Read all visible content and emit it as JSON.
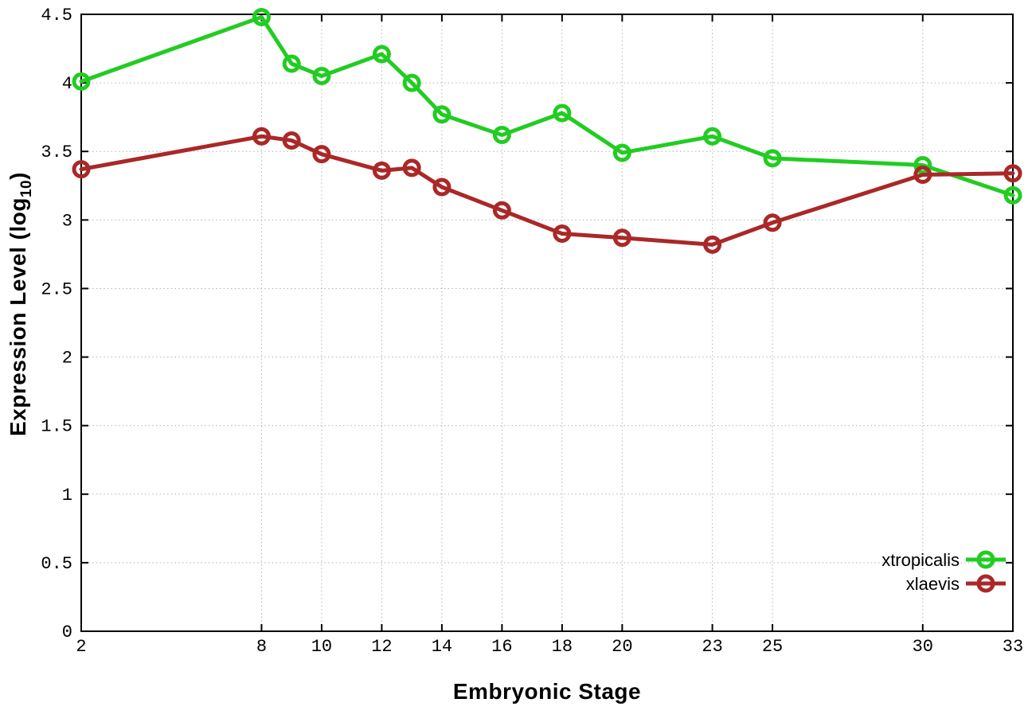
{
  "chart_data": {
    "type": "line",
    "title": "",
    "xlabel": "Embryonic Stage",
    "ylabel": "Expression Level (log10)",
    "ylabel_parts": {
      "pre": "Expression Level (log",
      "sub": "10",
      "post": ")"
    },
    "xlim": [
      2,
      33
    ],
    "ylim": [
      0,
      4.5
    ],
    "x_ticks": [
      2,
      8,
      10,
      12,
      14,
      16,
      18,
      20,
      23,
      25,
      30,
      33
    ],
    "y_ticks": [
      0,
      0.5,
      1,
      1.5,
      2,
      2.5,
      3,
      3.5,
      4,
      4.5
    ],
    "grid": true,
    "grid_style": "dotted",
    "legend_position": "bottom-right",
    "x": [
      2,
      8,
      9,
      10,
      12,
      13,
      14,
      16,
      18,
      20,
      23,
      25,
      30,
      33
    ],
    "series": [
      {
        "name": "xtropicalis",
        "color": "#22cc22",
        "marker": "open-circle",
        "values": [
          4.01,
          4.48,
          4.14,
          4.05,
          4.21,
          4.0,
          3.77,
          3.62,
          3.78,
          3.49,
          3.61,
          3.45,
          3.4,
          3.18
        ]
      },
      {
        "name": "xlaevis",
        "color": "#aa2828",
        "marker": "open-circle",
        "values": [
          3.37,
          3.61,
          3.58,
          3.48,
          3.36,
          3.38,
          3.24,
          3.07,
          2.9,
          2.87,
          2.82,
          2.98,
          3.33,
          3.34
        ]
      }
    ]
  },
  "style": {
    "grid_color": "#b3b3b3",
    "axis_color": "#000000",
    "tick_label_color": "#000000",
    "background": "#ffffff"
  }
}
